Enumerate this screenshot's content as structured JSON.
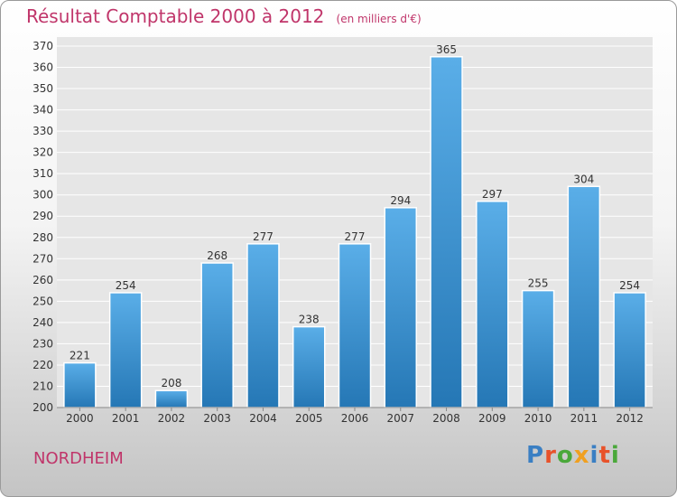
{
  "header": {
    "title": "Résultat Comptable 2000 à 2012",
    "subtitle": "(en milliers d'€)"
  },
  "footer": {
    "commune": "NORDHEIM",
    "logo_text": "Proxiti",
    "logo_colors": [
      "#3a7fc3",
      "#e8522a",
      "#4aa83a",
      "#f0a020",
      "#3a7fc3",
      "#e8522a",
      "#4aa83a"
    ]
  },
  "colors": {
    "bar_top": "#5aaee8",
    "bar_bottom": "#2577b5",
    "title": "#c0356a",
    "grid": "#ffffff"
  },
  "chart_data": {
    "type": "bar",
    "title": "Résultat Comptable 2000 à 2012",
    "subtitle": "(en milliers d'€)",
    "categories": [
      "2000",
      "2001",
      "2002",
      "2003",
      "2004",
      "2005",
      "2006",
      "2007",
      "2008",
      "2009",
      "2010",
      "2011",
      "2012"
    ],
    "values": [
      221,
      254,
      208,
      268,
      277,
      238,
      277,
      294,
      365,
      297,
      255,
      304,
      254
    ],
    "ylim": [
      200,
      370
    ],
    "ytick_step": 10,
    "grid": true,
    "data_labels": true
  }
}
